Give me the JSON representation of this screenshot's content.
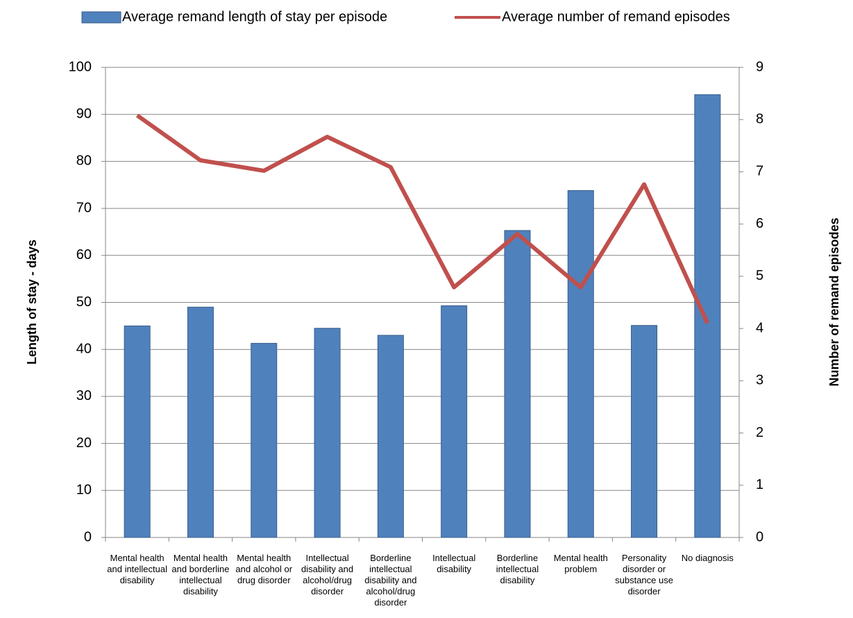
{
  "chart_data": {
    "type": "bar-line",
    "categories": [
      "Mental health and intellectual disability",
      "Mental health and borderline intellectual disability",
      "Mental health and alcohol or drug disorder",
      "Intellectual disability and alcohol/drug disorder",
      "Borderline intellectual disability and alcohol/drug disorder",
      "Intellectual disability",
      "Borderline intellectual disability",
      "Mental health problem",
      "Personality disorder or substance use disorder",
      "No diagnosis"
    ],
    "series": [
      {
        "name": "Average remand length of stay per episode",
        "type": "bar",
        "color": "#4f81bd",
        "values": [
          45,
          49,
          41.3,
          44.5,
          43,
          49.3,
          65.3,
          73.8,
          45.1,
          94.2
        ]
      },
      {
        "name": "Average number of remand episodes",
        "type": "line",
        "axis": "y2",
        "color": "#c0504d",
        "values": [
          8.08,
          7.22,
          7.02,
          7.67,
          7.09,
          4.79,
          5.81,
          4.79,
          6.76,
          4.1
        ]
      }
    ],
    "ylabel": "Length of stay - days",
    "y2label": "Number of remand episodes",
    "ylim": [
      0,
      100
    ],
    "yticks": [
      0,
      10,
      20,
      30,
      40,
      50,
      60,
      70,
      80,
      90,
      100
    ],
    "y2lim": [
      0,
      9
    ],
    "y2ticks": [
      0,
      1,
      2,
      3,
      4,
      5,
      6,
      7,
      8,
      9
    ],
    "grid": true,
    "legend": "top"
  }
}
